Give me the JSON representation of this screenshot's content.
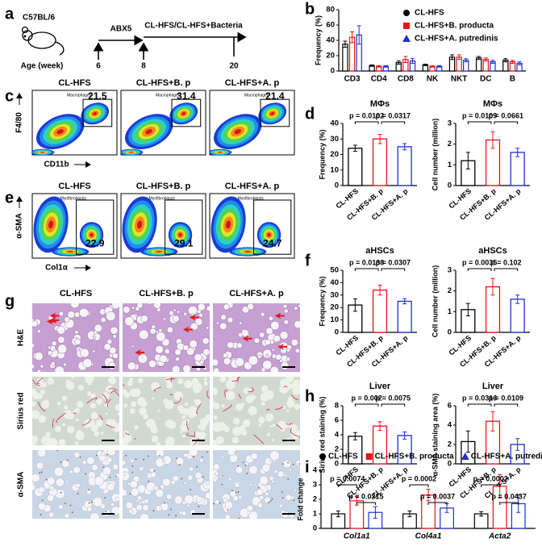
{
  "panel_labels": [
    "a",
    "b",
    "c",
    "d",
    "e",
    "f",
    "g",
    "h",
    "i"
  ],
  "diagram": {
    "strain": "C57BL/6",
    "age_label": "Age (week)",
    "treatment_1": "ABX5",
    "treatment_2": "CL-HFS/CL-HFS+Bacteria",
    "weeks": [
      "6",
      "8",
      "20"
    ]
  },
  "flow_c": {
    "groups": [
      "CL-HFS",
      "CL-HFS+B. p",
      "CL-HFS+A. p"
    ],
    "gate": "Macrophages",
    "values": [
      21.5,
      31.4,
      21.4
    ],
    "y_axis": "F4/80",
    "x_axis": "CD11b"
  },
  "flow_e": {
    "groups": [
      "CL-HFS",
      "CL-HFS+B. p",
      "CL-HFS+A. p"
    ],
    "gate": "Myofibroblasts",
    "values": [
      22.9,
      29.1,
      24.7
    ],
    "y_axis": "α-SMA",
    "x_axis": "Col1α"
  },
  "histology": {
    "groups": [
      "CL-HFS",
      "CL-HFS+B. p",
      "CL-HFS+A. p"
    ],
    "stains": [
      "H&E",
      "Sirius red",
      "α-SMA"
    ]
  },
  "chart_data": [
    {
      "type": "bar",
      "ylabel": "Frequency (%)",
      "categories": [
        "CD3",
        "CD4",
        "CD8",
        "NK",
        "NKT",
        "DC",
        "B"
      ],
      "series": [
        {
          "name": "CL-HFS",
          "color": "#000000",
          "marker": "circle",
          "values": [
            35,
            7,
            11,
            8,
            18,
            17,
            14
          ],
          "errors": [
            4,
            1,
            2,
            1,
            3,
            2,
            2
          ]
        },
        {
          "name": "CL-HFS+B. producta",
          "color": "#e8141b",
          "marker": "square",
          "values": [
            44,
            6,
            15,
            6,
            18,
            15,
            12
          ],
          "errors": [
            7,
            1,
            4,
            1,
            3,
            2,
            2
          ]
        },
        {
          "name": "CL-HFS+A. putredinis",
          "color": "#1f2fd0",
          "marker": "triangle",
          "values": [
            47,
            6,
            13,
            6,
            14,
            12,
            10
          ],
          "errors": [
            12,
            1,
            3,
            1,
            2,
            2,
            2
          ]
        }
      ],
      "ylim": [
        0,
        80
      ],
      "yticks": [
        0,
        20,
        40,
        60,
        80
      ],
      "legend": "upper right"
    },
    {
      "type": "bar",
      "title": "MΦs",
      "ylabel": "Frequency (%)",
      "categories": [
        "CL-HFS",
        "CL-HFS+B. p",
        "CL-HFS+A. p"
      ],
      "colors": [
        "#000000",
        "#e8141b",
        "#1f2fd0"
      ],
      "values": [
        24,
        30,
        25
      ],
      "errors": [
        2,
        3,
        2
      ],
      "pvalues": [
        "p = 0.0102",
        "p = 0.0317"
      ],
      "ylim": [
        0,
        40
      ],
      "yticks": [
        0,
        10,
        20,
        30,
        40
      ]
    },
    {
      "type": "bar",
      "title": "MΦs",
      "ylabel": "Cell number (million)",
      "categories": [
        "CL-HFS",
        "CL-HFS+B. p",
        "CL-HFS+A. p"
      ],
      "colors": [
        "#000000",
        "#e8141b",
        "#1f2fd0"
      ],
      "values": [
        1.2,
        2.2,
        1.6
      ],
      "errors": [
        0.4,
        0.4,
        0.2
      ],
      "pvalues": [
        "p = 0.0109",
        "p = 0.0661"
      ],
      "ylim": [
        0,
        3
      ],
      "yticks": [
        0,
        1,
        2,
        3
      ]
    },
    {
      "type": "bar",
      "title": "aHSCs",
      "ylabel": "Frequency (%)",
      "categories": [
        "CL-HFS",
        "CL-HFS+B. p",
        "CL-HFS+A. p"
      ],
      "colors": [
        "#000000",
        "#e8141b",
        "#1f2fd0"
      ],
      "values": [
        22,
        34,
        25
      ],
      "errors": [
        5,
        4,
        2
      ],
      "pvalues": [
        "p = 0.0138",
        "p = 0.0307"
      ],
      "ylim": [
        0,
        50
      ],
      "yticks": [
        0,
        10,
        20,
        30,
        40,
        50
      ]
    },
    {
      "type": "bar",
      "title": "aHSCs",
      "ylabel": "Cell number (million)",
      "categories": [
        "CL-HFS",
        "CL-HFS+B. p",
        "CL-HFS+A. p"
      ],
      "colors": [
        "#000000",
        "#e8141b",
        "#1f2fd0"
      ],
      "values": [
        1.1,
        2.2,
        1.6
      ],
      "errors": [
        0.3,
        0.4,
        0.2
      ],
      "pvalues": [
        "p = 0.0035",
        "p = 0.102"
      ],
      "ylim": [
        0,
        3
      ],
      "yticks": [
        0,
        1,
        2,
        3
      ]
    },
    {
      "type": "bar",
      "title": "Liver",
      "ylabel": "Sirius red staining (%)",
      "categories": [
        "CL-HFS",
        "CL-HFS+B. p",
        "CL-HFS+A. p"
      ],
      "colors": [
        "#000000",
        "#e8141b",
        "#1f2fd0"
      ],
      "values": [
        3.8,
        5.2,
        3.9
      ],
      "errors": [
        0.5,
        0.6,
        0.5
      ],
      "pvalues": [
        "p = 0.002",
        "p = 0.0075"
      ],
      "ylim": [
        0,
        8
      ],
      "yticks": [
        0,
        2,
        4,
        6,
        8
      ]
    },
    {
      "type": "bar",
      "title": "Liver",
      "ylabel": "α-SMA staining area (%)",
      "categories": [
        "CL-HFS",
        "CL-HFS+B. p",
        "CL-HFS+A. p"
      ],
      "colors": [
        "#000000",
        "#e8141b",
        "#1f2fd0"
      ],
      "values": [
        2.3,
        4.4,
        2.0
      ],
      "errors": [
        1.1,
        1.0,
        0.6
      ],
      "pvalues": [
        "p = 0.0316",
        "p = 0.0109"
      ],
      "ylim": [
        0,
        6
      ],
      "yticks": [
        0,
        2,
        4,
        6
      ]
    },
    {
      "type": "bar",
      "ylabel": "Fold change",
      "categories": [
        "Col1a1",
        "Col4a1",
        "Acta2"
      ],
      "category_style": "italic",
      "series": [
        {
          "name": "CL-HFS",
          "color": "#000000",
          "marker": "circle",
          "values": [
            1.0,
            1.0,
            1.0
          ],
          "errors": [
            0.2,
            0.2,
            0.15
          ]
        },
        {
          "name": "CL-HFS+B. producta",
          "color": "#e8141b",
          "marker": "square",
          "values": [
            1.9,
            2.3,
            2.9
          ],
          "errors": [
            0.3,
            0.4,
            0.8
          ]
        },
        {
          "name": "CL-HFS+A. putredinis",
          "color": "#1f2fd0",
          "marker": "triangle",
          "values": [
            1.1,
            1.4,
            1.7
          ],
          "errors": [
            0.4,
            0.3,
            0.6
          ]
        }
      ],
      "pvalues": [
        [
          "p = 0.0074",
          "p = 0.0215"
        ],
        [
          "p = 0.0002",
          "p = 0.0037"
        ],
        [
          "p = 0.0002",
          "p = 0.0437"
        ]
      ],
      "ylim": [
        0,
        4
      ],
      "yticks": [
        0,
        1,
        2,
        3,
        4
      ],
      "legend": "top"
    }
  ]
}
